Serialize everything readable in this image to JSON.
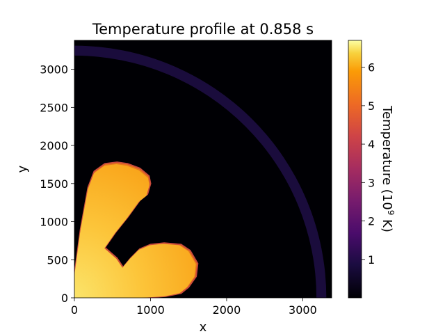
{
  "chart_data": {
    "type": "heatmap",
    "title": "Temperature profile at 0.858 s",
    "xlabel": "x",
    "ylabel": "y",
    "xlim": [
      0,
      3380
    ],
    "ylim": [
      0,
      3380
    ],
    "x_ticks": [
      0,
      1000,
      2000,
      3000
    ],
    "x_tick_labels": [
      "0",
      "1000",
      "2000",
      "3000"
    ],
    "y_ticks": [
      0,
      500,
      1000,
      1500,
      2000,
      2500,
      3000
    ],
    "y_tick_labels": [
      "0",
      "500",
      "1000",
      "1500",
      "2000",
      "2500",
      "3000"
    ],
    "colorbar": {
      "label_prefix": "Temperature (10",
      "label_exp": "9",
      "label_suffix": " K)",
      "range": [
        0,
        6.7
      ],
      "ticks": [
        1,
        2,
        3,
        4,
        5,
        6
      ],
      "tick_labels": [
        "1",
        "2",
        "3",
        "4",
        "5",
        "6"
      ],
      "colormap": "inferno"
    },
    "features": {
      "background_temperature": 0.05,
      "shell": {
        "inner_radius": 3180,
        "outer_radius": 3310,
        "temperature": 0.5
      },
      "hot_region_temperature": [
        5.4,
        6.4
      ],
      "hot_region_outline": [
        [
          0,
          0
        ],
        [
          0,
          300
        ],
        [
          80,
          900
        ],
        [
          180,
          1450
        ],
        [
          260,
          1660
        ],
        [
          400,
          1760
        ],
        [
          560,
          1780
        ],
        [
          700,
          1760
        ],
        [
          860,
          1700
        ],
        [
          980,
          1600
        ],
        [
          1000,
          1500
        ],
        [
          960,
          1360
        ],
        [
          860,
          1280
        ],
        [
          700,
          1060
        ],
        [
          540,
          860
        ],
        [
          400,
          660
        ],
        [
          560,
          520
        ],
        [
          640,
          400
        ],
        [
          740,
          520
        ],
        [
          860,
          640
        ],
        [
          1000,
          700
        ],
        [
          1180,
          720
        ],
        [
          1400,
          700
        ],
        [
          1520,
          620
        ],
        [
          1620,
          450
        ],
        [
          1600,
          280
        ],
        [
          1500,
          140
        ],
        [
          1400,
          60
        ],
        [
          1200,
          20
        ],
        [
          900,
          0
        ]
      ]
    }
  }
}
